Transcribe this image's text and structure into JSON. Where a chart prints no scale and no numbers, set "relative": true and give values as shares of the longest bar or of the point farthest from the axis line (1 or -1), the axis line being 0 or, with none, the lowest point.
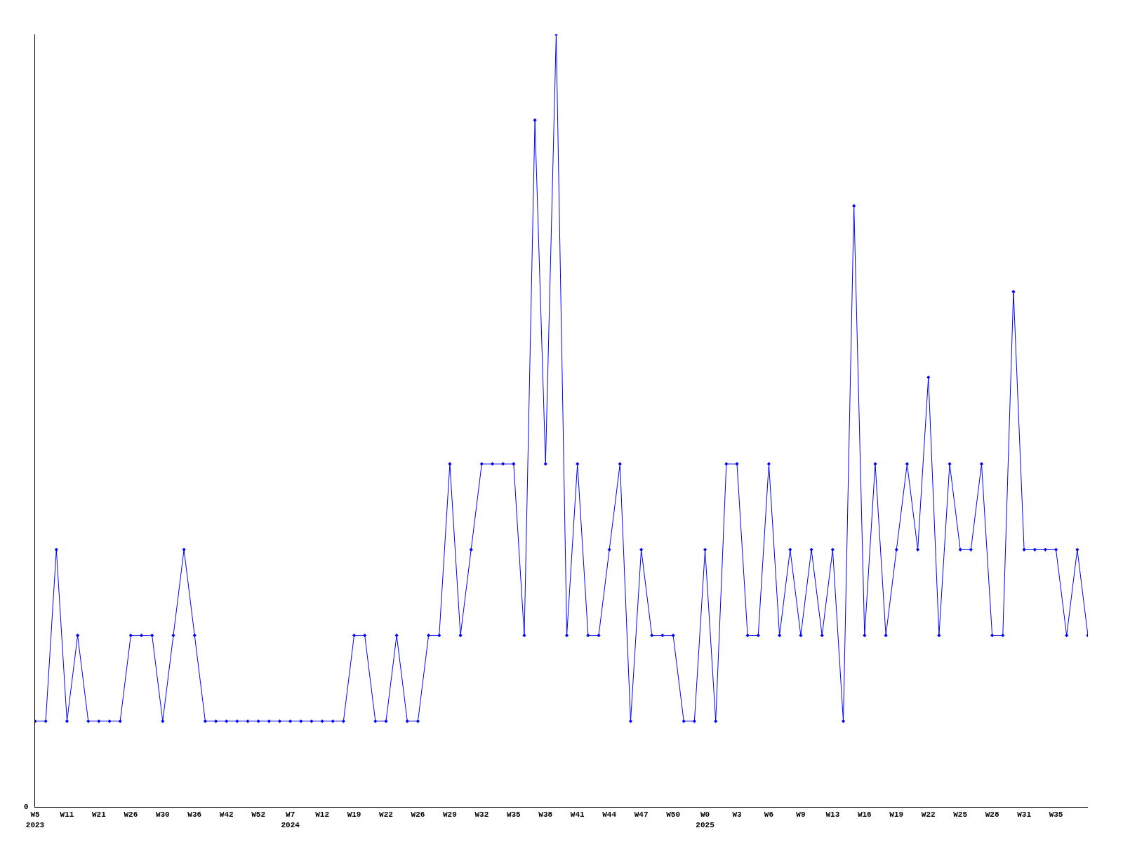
{
  "chart_data": {
    "type": "line",
    "relative": true,
    "color": "#0000ff",
    "marker": "diamond",
    "annotations": [
      "0"
    ],
    "categories": [
      "W5\n2023",
      null,
      null,
      "W11",
      null,
      null,
      "W21",
      null,
      null,
      "W26",
      null,
      null,
      "W30",
      null,
      null,
      "W36",
      null,
      null,
      "W42",
      null,
      null,
      "W52",
      null,
      null,
      "W7\n2024",
      null,
      null,
      "W12",
      null,
      null,
      "W19",
      null,
      null,
      "W22",
      null,
      null,
      "W26",
      null,
      null,
      "W29",
      null,
      null,
      "W32",
      null,
      null,
      "W35",
      null,
      null,
      "W38",
      null,
      null,
      "W41",
      null,
      null,
      "W44",
      null,
      null,
      "W47",
      null,
      null,
      "W50",
      null,
      null,
      "W0\n2025",
      null,
      null,
      "W3",
      null,
      null,
      "W6",
      null,
      null,
      "W9",
      null,
      null,
      "W13",
      null,
      null,
      "W16",
      null,
      null,
      "W19",
      null,
      null,
      "W22",
      null,
      null,
      "W25",
      null,
      null,
      "W28",
      null,
      null,
      "W31",
      null,
      null,
      "W35",
      null,
      null,
      null
    ],
    "values": [
      0.111,
      0.111,
      0.333,
      0.111,
      0.222,
      0.111,
      0.111,
      0.111,
      0.111,
      0.222,
      0.222,
      0.222,
      0.111,
      0.222,
      0.333,
      0.222,
      0.111,
      0.111,
      0.111,
      0.111,
      0.111,
      0.111,
      0.111,
      0.111,
      0.111,
      0.111,
      0.111,
      0.111,
      0.111,
      0.111,
      0.222,
      0.222,
      0.111,
      0.111,
      0.222,
      0.111,
      0.111,
      0.222,
      0.222,
      0.444,
      0.222,
      0.333,
      0.444,
      0.444,
      0.444,
      0.444,
      0.222,
      0.889,
      0.444,
      1,
      0.222,
      0.444,
      0.222,
      0.222,
      0.333,
      0.444,
      0.111,
      0.333,
      0.222,
      0.222,
      0.222,
      0.111,
      0.111,
      0.333,
      0.111,
      0.444,
      0.444,
      0.222,
      0.222,
      0.444,
      0.222,
      0.333,
      0.222,
      0.333,
      0.222,
      0.333,
      0.111,
      0.778,
      0.222,
      0.444,
      0.222,
      0.333,
      0.444,
      0.333,
      0.556,
      0.222,
      0.444,
      0.333,
      0.333,
      0.444,
      0.222,
      0.222,
      0.667,
      0.333,
      0.333,
      0.333,
      0.333,
      0.222,
      0.333,
      0.222
    ]
  }
}
